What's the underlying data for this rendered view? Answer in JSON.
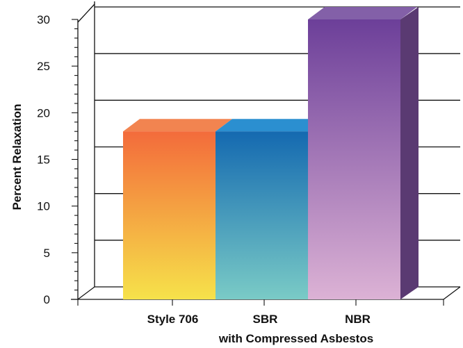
{
  "chart_data": {
    "type": "bar",
    "categories": [
      "Style 706",
      "SBR",
      "NBR"
    ],
    "values": [
      18,
      18,
      30
    ],
    "xlabel": "with Compressed Asbestos",
    "ylabel": "Percent  Relaxation",
    "ylim": [
      0,
      30
    ],
    "yticks": [
      "0",
      "5",
      "10",
      "15",
      "20",
      "25",
      "30"
    ],
    "grid": true,
    "three_d": true,
    "bar_colors": [
      {
        "top": "#f36b3b",
        "bottom": "#f6e24a",
        "cap": "#f28450"
      },
      {
        "top": "#1469b0",
        "bottom": "#7acbc6",
        "cap": "#2b8fd0"
      },
      {
        "top": "#6c3f99",
        "bottom": "#dcb2d5",
        "cap": "#8360a8",
        "side": "#5a3a72"
      }
    ]
  }
}
